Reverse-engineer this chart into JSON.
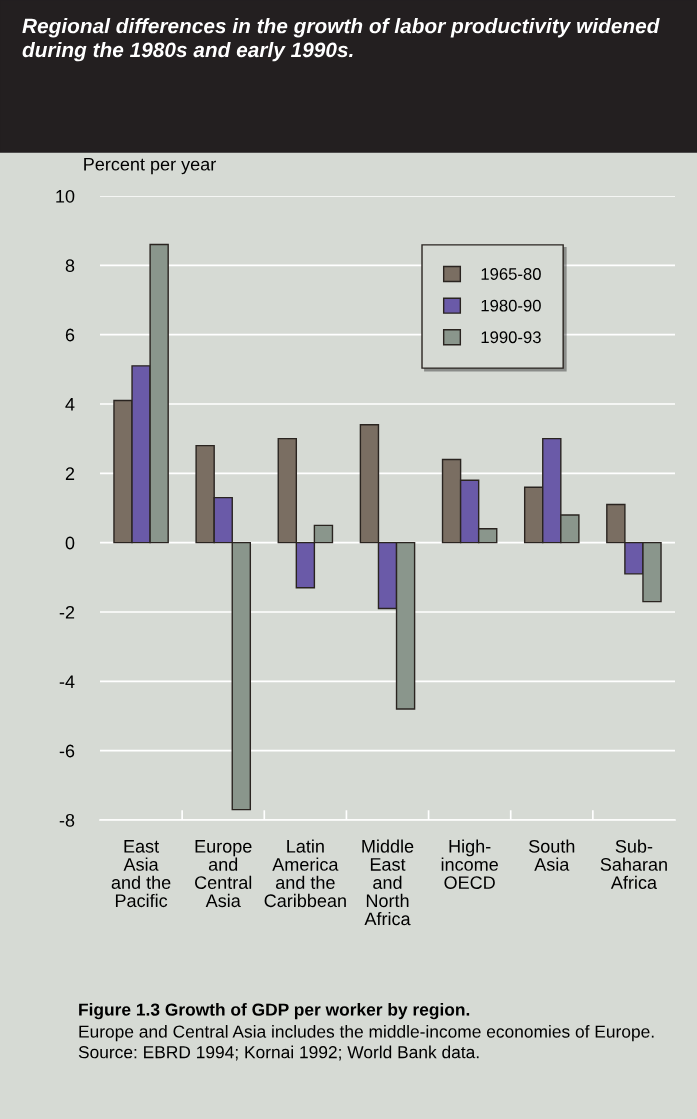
{
  "chart_data": {
    "type": "bar",
    "title": "Regional differences in the growth of labor productivity widened during the 1980s and early 1990s.",
    "ylabel": "Percent per year",
    "categories": [
      "East\nAsia\nand the\nPacific",
      "Europe\nand\nCentral\nAsia",
      "Latin\nAmerica\nand the\nCaribbean",
      "Middle\nEast\nand\nNorth\nAfrica",
      "High-\nincome\nOECD",
      "South\nAsia",
      "Sub-\nSaharan\nAfrica"
    ],
    "series": [
      {
        "name": "1965-80",
        "color": "#7a6e62",
        "values": [
          4.1,
          2.8,
          3.0,
          3.4,
          2.4,
          1.6,
          1.1
        ]
      },
      {
        "name": "1980-90",
        "color": "#6a5aa8",
        "values": [
          5.1,
          1.3,
          -1.3,
          -1.9,
          1.8,
          3.0,
          -0.9
        ]
      },
      {
        "name": "1990-93",
        "color": "#8a968c",
        "values": [
          8.6,
          -7.7,
          0.5,
          -4.8,
          0.4,
          0.8,
          -1.7
        ]
      }
    ],
    "ylim": [
      -8,
      10
    ],
    "yticks": [
      -8,
      -6,
      -4,
      -2,
      0,
      2,
      4,
      6,
      8,
      10
    ],
    "grid": "y",
    "legend": "top right",
    "annotations": [
      "Figure 1.3 Growth of GDP per worker by region.",
      "Europe and Central Asia includes the middle-income economies of Europe. Source: EBRD 1994; Kornai 1992; World Bank data."
    ]
  }
}
